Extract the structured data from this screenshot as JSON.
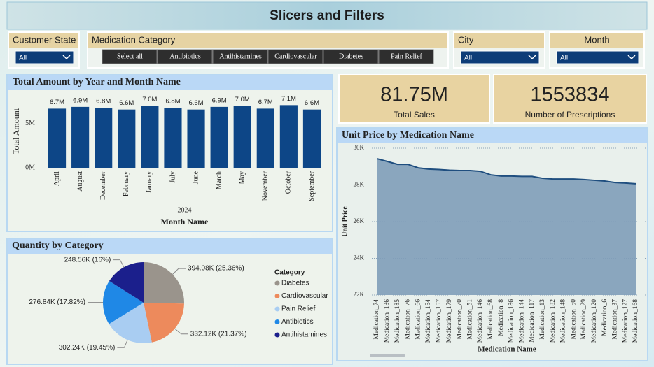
{
  "header": {
    "title": "Slicers and Filters"
  },
  "slicers": [
    {
      "label": "Customer State",
      "selection": "All"
    },
    {
      "label": "Medication Category",
      "options": [
        "Select all",
        "Antibiotics",
        "Antihistamines",
        "Cardiovascular",
        "Diabetes",
        "Pain Relief"
      ]
    },
    {
      "label": "City",
      "selection": "All"
    },
    {
      "label": "Month",
      "selection": "All"
    }
  ],
  "cards": [
    {
      "value": "81.75M",
      "label": "Total Sales"
    },
    {
      "value": 1553834,
      "label": "Number of Prescriptions"
    }
  ],
  "chart_data": [
    {
      "type": "bar",
      "title": "Total Amount by Year and Month Name",
      "categories": [
        "April",
        "August",
        "December",
        "February",
        "January",
        "July",
        "June",
        "March",
        "May",
        "November",
        "October",
        "September"
      ],
      "values": [
        6.7,
        6.9,
        6.8,
        6.6,
        7.0,
        6.8,
        6.6,
        6.9,
        7.0,
        6.7,
        7.1,
        6.6
      ],
      "value_labels": [
        "6.7M",
        "6.9M",
        "6.8M",
        "6.6M",
        "7.0M",
        "6.8M",
        "6.6M",
        "6.9M",
        "7.0M",
        "6.7M",
        "7.1M",
        "6.6M"
      ],
      "color": "#0d4687",
      "ylim": [
        0,
        8
      ],
      "yticks": [
        {
          "value": 0,
          "label": "0M"
        },
        {
          "value": 5,
          "label": "5M"
        }
      ],
      "x_group_label": "2024",
      "xlabel": "Month Name",
      "ylabel": "Total Amount"
    },
    {
      "type": "pie",
      "title": "Quantity by Category",
      "categories": [
        "Diabetes",
        "Cardiovascular",
        "Pain Relief",
        "Antibiotics",
        "Antihistamines"
      ],
      "values": [
        394.08,
        332.12,
        302.24,
        276.84,
        248.56
      ],
      "value_labels": [
        "394.08K (25.36%)",
        "332.12K (21.37%)",
        "302.24K (19.45%)",
        "276.84K (17.82%)",
        "248.56K (16%)"
      ],
      "colors": [
        "#9a948c",
        "#ed8a5c",
        "#a9cdf2",
        "#1f88e6",
        "#1b1f8c"
      ],
      "legend_title": "Category",
      "legend": "right"
    },
    {
      "type": "area",
      "title": "Unit Price by Medication Name",
      "categories": [
        "Medication_74",
        "Medication_136",
        "Medication_185",
        "Medication_76",
        "Medication_66",
        "Medication_154",
        "Medication_157",
        "Medication_179",
        "Medication_70",
        "Medication_51",
        "Medication_146",
        "Medication_68",
        "Medication_8",
        "Medication_186",
        "Medication_144",
        "Medication_117",
        "Medication_13",
        "Medication_182",
        "Medication_148",
        "Medication_50",
        "Medication_29",
        "Medication_120",
        "Medication_6",
        "Medication_37",
        "Medication_127",
        "Medication_168"
      ],
      "values": [
        29.43,
        29.28,
        29.12,
        29.12,
        28.93,
        28.86,
        28.84,
        28.8,
        28.78,
        28.78,
        28.74,
        28.55,
        28.48,
        28.48,
        28.46,
        28.46,
        28.36,
        28.32,
        28.32,
        28.32,
        28.29,
        28.25,
        28.21,
        28.13,
        28.1,
        28.06
      ],
      "color": "#1f4e7f",
      "fill": "#7f9db9",
      "ylim": [
        22,
        30
      ],
      "yticks": [
        {
          "value": 22,
          "label": "22K"
        },
        {
          "value": 24,
          "label": "24K"
        },
        {
          "value": 26,
          "label": "26K"
        },
        {
          "value": 28,
          "label": "28K"
        },
        {
          "value": 30,
          "label": "30K"
        }
      ],
      "grid": true,
      "xlabel": "Medication Name",
      "ylabel": "Unit Price"
    }
  ]
}
